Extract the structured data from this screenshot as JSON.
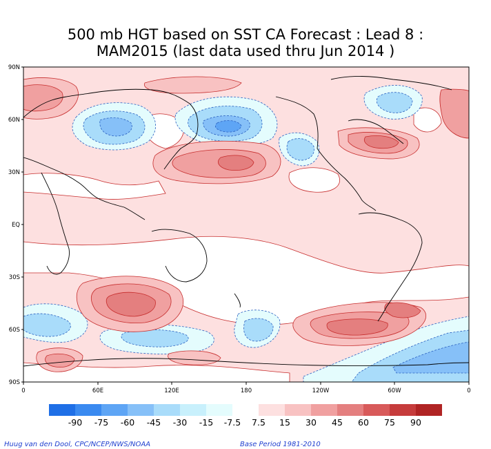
{
  "title": {
    "line1": "500 mb HGT based on SST CA Forecast : Lead 8 :",
    "line2": "MAM2015 (last data used thru Jun 2014 )"
  },
  "axes": {
    "lat_labels": [
      "90N",
      "60N",
      "30N",
      "EQ",
      "30S",
      "60S",
      "90S"
    ],
    "lon_labels": [
      "0",
      "60E",
      "120E",
      "180",
      "120W",
      "60W",
      "0"
    ]
  },
  "colorbar": {
    "labels": [
      "-90",
      "-75",
      "-60",
      "-45",
      "-30",
      "-15",
      "-7.5",
      "7.5",
      "15",
      "30",
      "45",
      "60",
      "75",
      "90"
    ],
    "colors": [
      "#1f6fe6",
      "#3a8af0",
      "#5ea5f5",
      "#86c0f8",
      "#a9dcfa",
      "#c8f0fc",
      "#e4fcfd",
      "#ffffff",
      "#fde0e0",
      "#f8c2c2",
      "#f0a0a0",
      "#e47f7f",
      "#d85a5a",
      "#c63c3c",
      "#b02424"
    ]
  },
  "credits": {
    "left": "Huug van den Dool, CPC/NCEP/NWS/NOAA",
    "right": "Base Period 1981-2010"
  }
}
